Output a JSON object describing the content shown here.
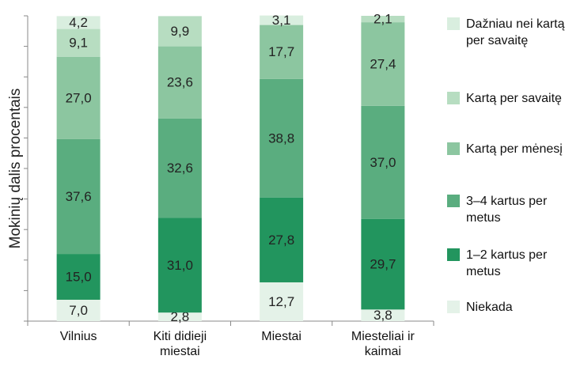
{
  "chart_data": {
    "type": "stacked-bar",
    "y_label": "Mokinių dalis procentais",
    "categories": [
      "Vilnius",
      "Kiti didieji miestai",
      "Miestai",
      "Miesteliai ir kaimai"
    ],
    "ylim": [
      0,
      100
    ],
    "yticks": [
      0,
      10,
      20,
      30,
      40,
      50,
      60,
      70,
      80,
      90,
      100
    ],
    "series": [
      {
        "name": "Niekada",
        "color": "#e4f2e8",
        "values": [
          7.0,
          2.8,
          12.7,
          3.8
        ],
        "value_labels": [
          "7,0",
          "2,8",
          "12,7",
          "3,8"
        ]
      },
      {
        "name": "1–2 kartus per metus",
        "color": "#22955e",
        "values": [
          15.0,
          31.0,
          27.8,
          29.7
        ],
        "value_labels": [
          "15,0",
          "31,0",
          "27,8",
          "29,7"
        ]
      },
      {
        "name": "3–4 kartus per metus",
        "color": "#5aad7f",
        "values": [
          37.6,
          32.6,
          38.8,
          37.0
        ],
        "value_labels": [
          "37,6",
          "32,6",
          "38,8",
          "37,0"
        ]
      },
      {
        "name": "Kartą per mėnesį",
        "color": "#8cc6a0",
        "values": [
          27.0,
          23.6,
          17.7,
          27.4
        ],
        "value_labels": [
          "27,0",
          "23,6",
          "17,7",
          "27,4"
        ]
      },
      {
        "name": "Kartą per savaitę",
        "color": "#b7ddc1",
        "values": [
          9.1,
          9.9,
          null,
          2.1
        ],
        "value_labels": [
          "9,1",
          "9,9",
          null,
          "2,1"
        ]
      },
      {
        "name": "Dažniau nei kartą per savaitę",
        "color": "#d9eedf",
        "values": [
          4.2,
          null,
          3.1,
          null
        ],
        "value_labels": [
          "4,2",
          null,
          "3,1",
          null
        ]
      }
    ]
  }
}
